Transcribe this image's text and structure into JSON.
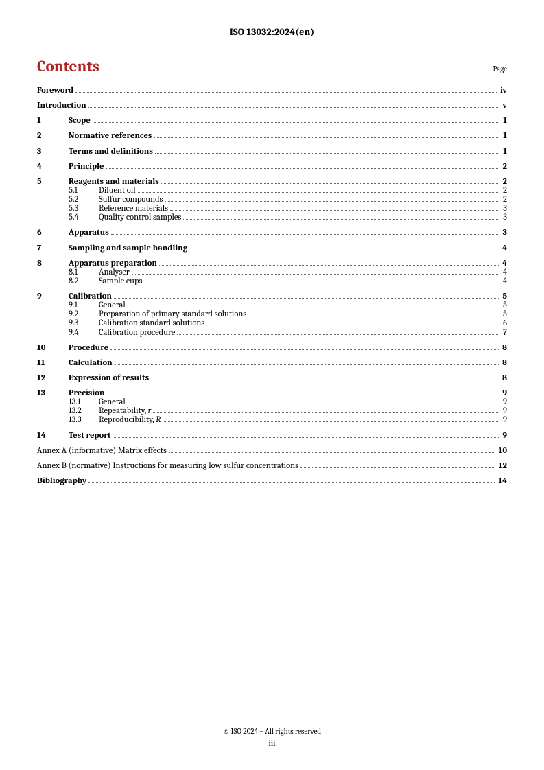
{
  "header": "ISO 13032:2024(en)",
  "contents_title": "Contents",
  "page_label": "Page",
  "footer_copyright": "© ISO 2024 – All rights reserved",
  "footer_page": "iii",
  "toc": {
    "foreword": {
      "label": "Foreword",
      "page": "iv"
    },
    "introduction": {
      "label": "Introduction",
      "page": "v"
    },
    "s1": {
      "num": "1",
      "label": "Scope",
      "page": "1"
    },
    "s2": {
      "num": "2",
      "label": "Normative references",
      "page": "1"
    },
    "s3": {
      "num": "3",
      "label": "Terms and definitions",
      "page": "1"
    },
    "s4": {
      "num": "4",
      "label": "Principle",
      "page": "2"
    },
    "s5": {
      "num": "5",
      "label": "Reagents and materials",
      "page": "2",
      "sub": {
        "s5_1": {
          "num": "5.1",
          "label": "Diluent oil",
          "page": "2"
        },
        "s5_2": {
          "num": "5.2",
          "label": "Sulfur compounds",
          "page": "2"
        },
        "s5_3": {
          "num": "5.3",
          "label": "Reference materials",
          "page": "3"
        },
        "s5_4": {
          "num": "5.4",
          "label": "Quality control samples",
          "page": "3"
        }
      }
    },
    "s6": {
      "num": "6",
      "label": "Apparatus",
      "page": "3"
    },
    "s7": {
      "num": "7",
      "label": "Sampling and sample handling",
      "page": "4"
    },
    "s8": {
      "num": "8",
      "label": "Apparatus preparation",
      "page": "4",
      "sub": {
        "s8_1": {
          "num": "8.1",
          "label": "Analyser",
          "page": "4"
        },
        "s8_2": {
          "num": "8.2",
          "label": "Sample cups",
          "page": "4"
        }
      }
    },
    "s9": {
      "num": "9",
      "label": "Calibration",
      "page": "5",
      "sub": {
        "s9_1": {
          "num": "9.1",
          "label": "General",
          "page": "5"
        },
        "s9_2": {
          "num": "9.2",
          "label": "Preparation of primary standard solutions",
          "page": "5"
        },
        "s9_3": {
          "num": "9.3",
          "label": "Calibration standard solutions",
          "page": "6"
        },
        "s9_4": {
          "num": "9.4",
          "label": "Calibration procedure",
          "page": "7"
        }
      }
    },
    "s10": {
      "num": "10",
      "label": "Procedure",
      "page": "8"
    },
    "s11": {
      "num": "11",
      "label": "Calculation",
      "page": "8"
    },
    "s12": {
      "num": "12",
      "label": "Expression of results",
      "page": "8"
    },
    "s13": {
      "num": "13",
      "label": "Precision",
      "page": "9",
      "sub": {
        "s13_1": {
          "num": "13.1",
          "label": "General",
          "page": "9"
        },
        "s13_2": {
          "num": "13.2",
          "label_pre": "Repeatability, ",
          "label_it": "r",
          "page": "9"
        },
        "s13_3": {
          "num": "13.3",
          "label_pre": "Reproducibility, ",
          "label_it": "R",
          "page": "9"
        }
      }
    },
    "s14": {
      "num": "14",
      "label": "Test report",
      "page": "9"
    },
    "annexA": {
      "prefix": "Annex A",
      "paren": " (informative)  ",
      "label": "Matrix effects",
      "page": "10"
    },
    "annexB": {
      "prefix": "Annex B",
      "paren": " (normative)  ",
      "label": "Instructions for measuring low sulfur concentrations",
      "page": "12"
    },
    "biblio": {
      "label": "Bibliography",
      "page": "14"
    }
  }
}
